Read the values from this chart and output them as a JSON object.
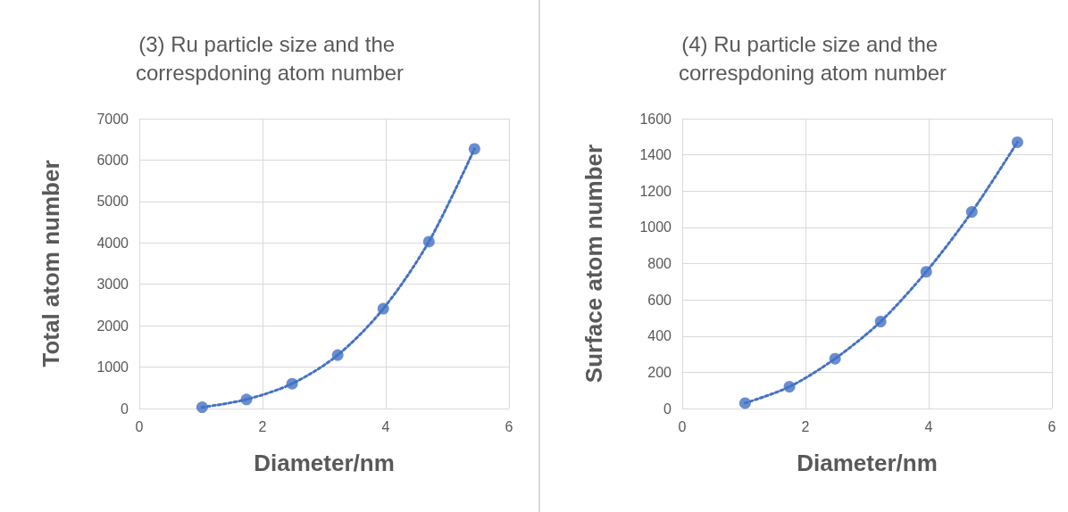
{
  "chart_data": [
    {
      "type": "scatter",
      "title": "(3) Ru particle size and the correspdoning atom number",
      "xlabel": "Diameter/nm",
      "ylabel": "Total atom number",
      "xlim": [
        0,
        6
      ],
      "xticks": [
        0,
        2,
        4,
        6
      ],
      "ylim": [
        0,
        7000
      ],
      "yticks": [
        0,
        1000,
        2000,
        3000,
        4000,
        5000,
        6000,
        7000
      ],
      "grid": true,
      "marker": "circle",
      "series": [
        {
          "type": "scatter",
          "color": "#4472c4",
          "x": [
            1.02,
            1.74,
            2.48,
            3.22,
            3.96,
            4.7,
            5.44
          ],
          "values": [
            30,
            220,
            600,
            1290,
            2410,
            4030,
            6270
          ]
        },
        {
          "type": "line",
          "color": "#4472c4",
          "line_style": "dotted",
          "marker": "none",
          "x": [
            1.02,
            1.74,
            2.48,
            3.22,
            3.96,
            4.7,
            5.44
          ],
          "values": [
            30,
            220,
            600,
            1290,
            2410,
            4030,
            6270
          ]
        }
      ]
    },
    {
      "type": "scatter",
      "title": "(4) Ru particle size and the correspdoning atom number",
      "xlabel": "Diameter/nm",
      "ylabel": "Surface atom number",
      "xlim": [
        0,
        6
      ],
      "xticks": [
        0,
        2,
        4,
        6
      ],
      "ylim": [
        0,
        1600
      ],
      "yticks": [
        0,
        200,
        400,
        600,
        800,
        1000,
        1200,
        1400,
        1600
      ],
      "grid": true,
      "marker": "circle",
      "series": [
        {
          "type": "scatter",
          "color": "#4472c4",
          "x": [
            1.02,
            1.74,
            2.48,
            3.22,
            3.96,
            4.7,
            5.44
          ],
          "values": [
            30,
            120,
            275,
            480,
            755,
            1085,
            1470
          ]
        },
        {
          "type": "line",
          "color": "#4472c4",
          "line_style": "dotted",
          "marker": "none",
          "x": [
            1.02,
            1.74,
            2.48,
            3.22,
            3.96,
            4.7,
            5.44
          ],
          "values": [
            30,
            120,
            275,
            480,
            755,
            1085,
            1470
          ]
        }
      ]
    }
  ]
}
